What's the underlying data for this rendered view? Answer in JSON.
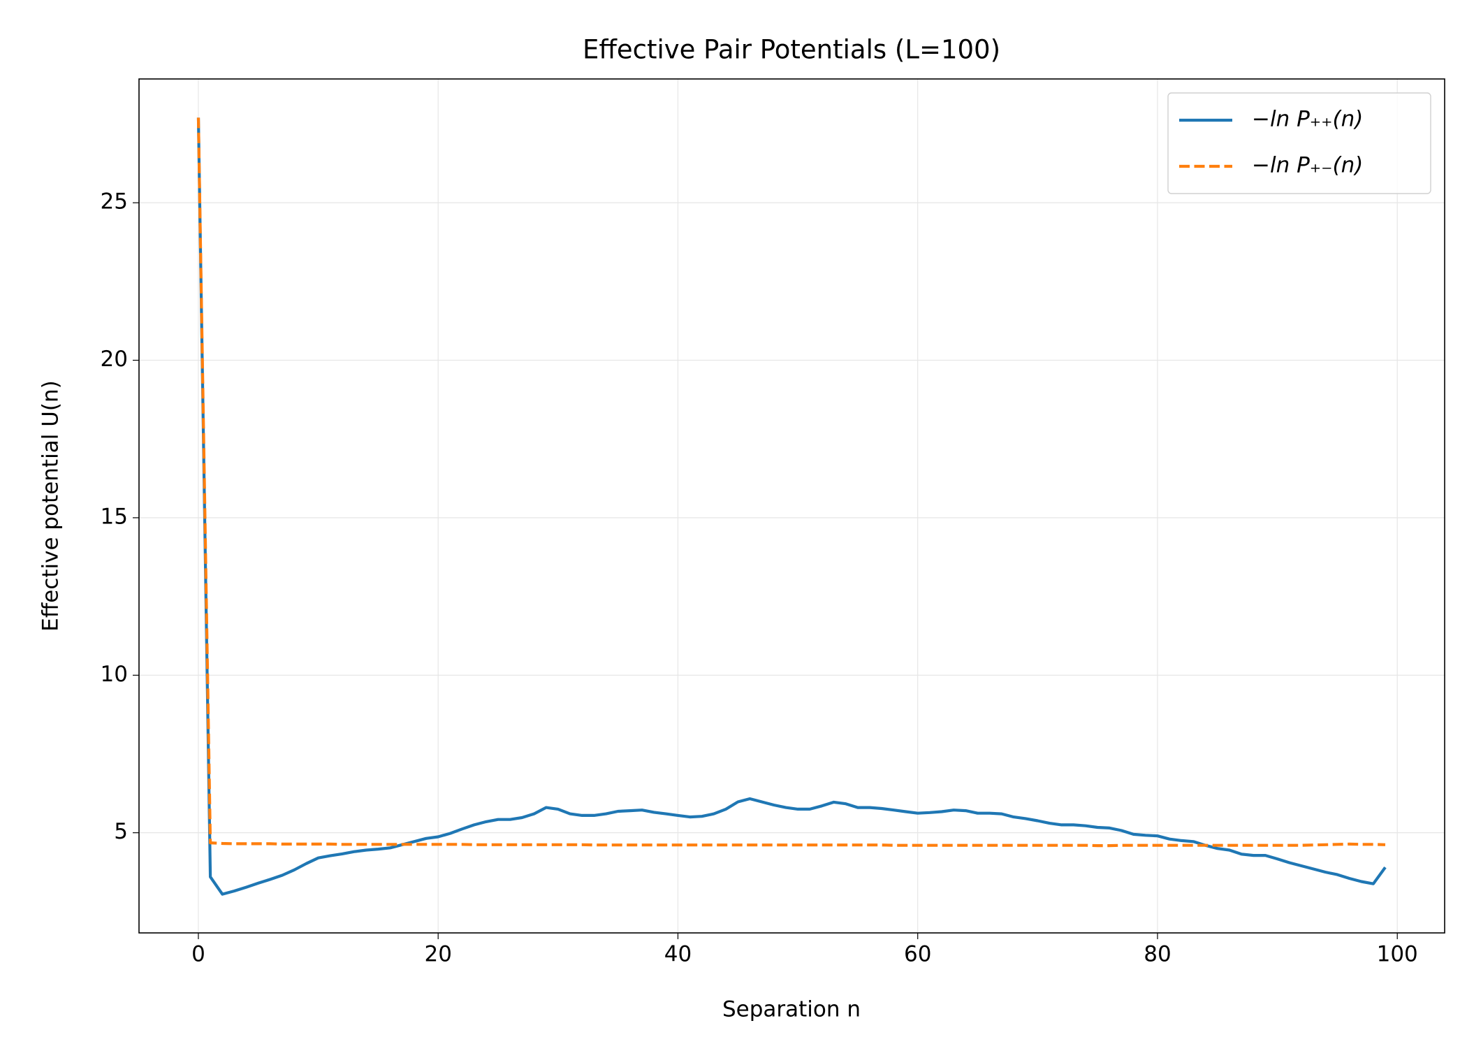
{
  "chart_data": {
    "type": "line",
    "title": "Effective Pair Potentials (L=100)",
    "xlabel": "Separation n",
    "ylabel": "Effective potential U(n)",
    "x": [
      0,
      1,
      2,
      3,
      4,
      5,
      6,
      7,
      8,
      9,
      10,
      11,
      12,
      13,
      14,
      15,
      16,
      17,
      18,
      19,
      20,
      21,
      22,
      23,
      24,
      25,
      26,
      27,
      28,
      29,
      30,
      31,
      32,
      33,
      34,
      35,
      36,
      37,
      38,
      39,
      40,
      41,
      42,
      43,
      44,
      45,
      46,
      47,
      48,
      49,
      50,
      51,
      52,
      53,
      54,
      55,
      56,
      57,
      58,
      59,
      60,
      61,
      62,
      63,
      64,
      65,
      66,
      67,
      68,
      69,
      70,
      71,
      72,
      73,
      74,
      75,
      76,
      77,
      78,
      79,
      80,
      81,
      82,
      83,
      84,
      85,
      86,
      87,
      88,
      89,
      90,
      91,
      92,
      93,
      94,
      95,
      96,
      97,
      98,
      99
    ],
    "series": [
      {
        "name": "−ln P₊₊(n)",
        "color": "#1f77b4",
        "dash": false,
        "values": [
          27.7,
          3.6,
          3.05,
          3.15,
          3.27,
          3.4,
          3.52,
          3.65,
          3.82,
          4.02,
          4.2,
          4.27,
          4.33,
          4.4,
          4.45,
          4.48,
          4.52,
          4.62,
          4.72,
          4.82,
          4.87,
          4.98,
          5.12,
          5.25,
          5.35,
          5.42,
          5.42,
          5.48,
          5.6,
          5.8,
          5.75,
          5.6,
          5.55,
          5.55,
          5.6,
          5.68,
          5.7,
          5.72,
          5.65,
          5.6,
          5.55,
          5.5,
          5.52,
          5.6,
          5.75,
          5.98,
          6.08,
          5.98,
          5.88,
          5.8,
          5.75,
          5.75,
          5.85,
          5.97,
          5.92,
          5.8,
          5.8,
          5.77,
          5.72,
          5.67,
          5.62,
          5.64,
          5.67,
          5.72,
          5.7,
          5.62,
          5.62,
          5.6,
          5.5,
          5.45,
          5.38,
          5.3,
          5.25,
          5.25,
          5.22,
          5.17,
          5.15,
          5.07,
          4.95,
          4.92,
          4.9,
          4.8,
          4.75,
          4.72,
          4.6,
          4.5,
          4.45,
          4.32,
          4.28,
          4.28,
          4.17,
          4.05,
          3.95,
          3.85,
          3.75,
          3.67,
          3.55,
          3.45,
          3.38,
          3.9
        ]
      },
      {
        "name": "−ln P₊₋(n)",
        "color": "#ff7f0e",
        "dash": true,
        "values": [
          27.7,
          4.68,
          4.66,
          4.65,
          4.65,
          4.65,
          4.65,
          4.64,
          4.64,
          4.64,
          4.64,
          4.64,
          4.63,
          4.63,
          4.63,
          4.63,
          4.63,
          4.63,
          4.63,
          4.63,
          4.63,
          4.63,
          4.63,
          4.62,
          4.62,
          4.62,
          4.62,
          4.62,
          4.62,
          4.62,
          4.62,
          4.62,
          4.62,
          4.61,
          4.61,
          4.61,
          4.61,
          4.61,
          4.61,
          4.61,
          4.61,
          4.61,
          4.61,
          4.61,
          4.61,
          4.61,
          4.61,
          4.61,
          4.61,
          4.61,
          4.61,
          4.61,
          4.61,
          4.61,
          4.61,
          4.61,
          4.61,
          4.61,
          4.6,
          4.6,
          4.6,
          4.6,
          4.6,
          4.6,
          4.6,
          4.6,
          4.6,
          4.6,
          4.6,
          4.6,
          4.6,
          4.6,
          4.6,
          4.6,
          4.6,
          4.59,
          4.59,
          4.6,
          4.6,
          4.6,
          4.6,
          4.6,
          4.6,
          4.6,
          4.6,
          4.6,
          4.6,
          4.6,
          4.6,
          4.6,
          4.6,
          4.6,
          4.6,
          4.61,
          4.62,
          4.63,
          4.64,
          4.63,
          4.63,
          4.62
        ]
      }
    ],
    "xlim": [
      -4.95,
      103.95
    ],
    "xticks": [
      0,
      20,
      40,
      60,
      80,
      100
    ],
    "ylim": [
      1.82,
      28.93
    ],
    "yticks": [
      5,
      10,
      15,
      20,
      25
    ],
    "grid": true,
    "legend": "upper right"
  }
}
